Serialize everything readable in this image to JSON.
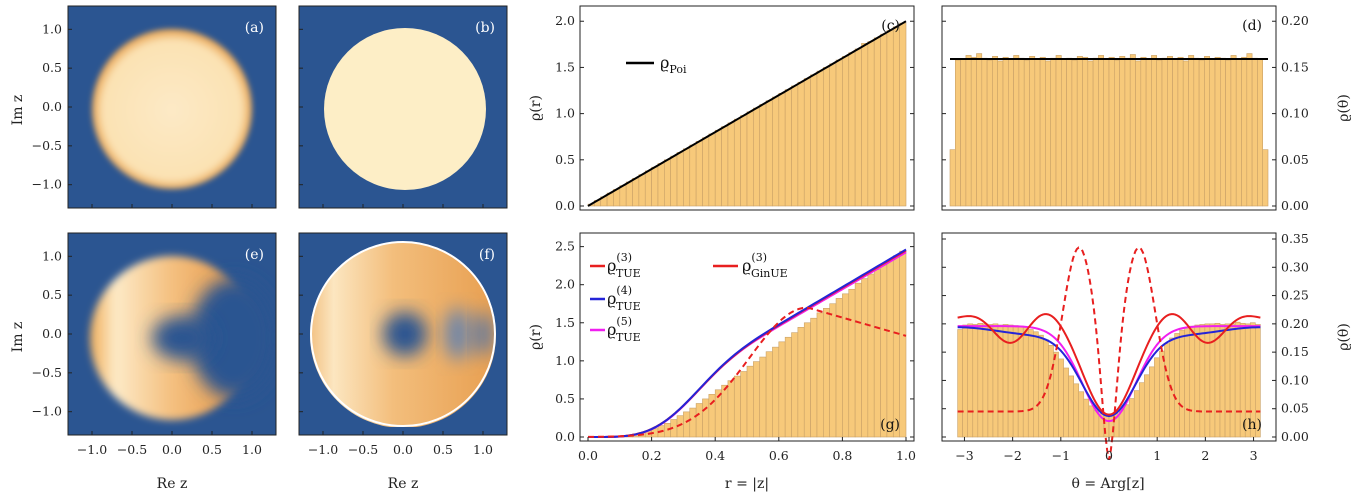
{
  "panel_labels": [
    "(a)",
    "(b)",
    "(c)",
    "(d)",
    "(e)",
    "(f)",
    "(g)",
    "(h)"
  ],
  "colors": {
    "navy": "#2b5591",
    "cream": "#fdeec6",
    "orange": "#e7a150",
    "bar_fill": "#f7c97a",
    "bar_edge": "#c9a167",
    "red": "#e81f1f",
    "blue": "#2424d8",
    "magenta": "#f01ff0",
    "black": "#000000"
  },
  "density_axes": {
    "ylabel": "Im z",
    "xlabel": "Re z",
    "xticks": [
      -1.0,
      -0.5,
      0.0,
      0.5,
      1.0
    ],
    "yticks": [
      1.0,
      0.5,
      0.0,
      -0.5,
      -1.0
    ],
    "range": [
      -1.3,
      1.3
    ]
  },
  "chart_data": [
    {
      "panel": "a",
      "type": "heatmap",
      "description_ref": "uniform disk, radius 1, blurred edge",
      "xlim": [
        -1.3,
        1.3
      ],
      "ylim": [
        -1.3,
        1.3
      ]
    },
    {
      "panel": "b",
      "type": "heatmap",
      "description_ref": "uniform disk, radius 1, sharp edge",
      "xlim": [
        -1.3,
        1.3
      ],
      "ylim": [
        -1.3,
        1.3
      ]
    },
    {
      "panel": "c",
      "type": "bar",
      "ylabel": "ϱ(r)",
      "xlim": [
        0,
        1
      ],
      "ylim": [
        0,
        2.1
      ],
      "yticks": [
        0.0,
        0.5,
        1.0,
        1.5,
        2.0
      ],
      "bins": 50,
      "values": [
        0.02,
        0.06,
        0.1,
        0.14,
        0.18,
        0.22,
        0.26,
        0.3,
        0.34,
        0.38,
        0.42,
        0.46,
        0.5,
        0.54,
        0.58,
        0.62,
        0.66,
        0.7,
        0.74,
        0.78,
        0.82,
        0.86,
        0.9,
        0.94,
        0.98,
        1.02,
        1.06,
        1.1,
        1.14,
        1.18,
        1.22,
        1.26,
        1.3,
        1.34,
        1.38,
        1.42,
        1.46,
        1.5,
        1.54,
        1.58,
        1.62,
        1.66,
        1.7,
        1.76,
        1.78,
        1.82,
        1.86,
        1.9,
        1.94,
        1.98
      ],
      "series": [
        {
          "name": "ϱ",
          "sub": "Poi",
          "formula": "2r",
          "color": "#000000"
        }
      ]
    },
    {
      "panel": "d",
      "type": "bar",
      "ylabel": "ϱ(θ)",
      "xlim": [
        -3.1416,
        3.1416
      ],
      "ylim": [
        0,
        0.21
      ],
      "yticks": [
        0.0,
        0.05,
        0.1,
        0.15,
        0.2
      ],
      "bins": 60,
      "values": [
        0.061,
        0.158,
        0.159,
        0.163,
        0.161,
        0.165,
        0.16,
        0.158,
        0.162,
        0.157,
        0.161,
        0.159,
        0.163,
        0.16,
        0.158,
        0.162,
        0.159,
        0.161,
        0.157,
        0.16,
        0.163,
        0.159,
        0.16,
        0.158,
        0.162,
        0.161,
        0.157,
        0.16,
        0.163,
        0.159,
        0.161,
        0.158,
        0.162,
        0.16,
        0.164,
        0.157,
        0.161,
        0.159,
        0.163,
        0.158,
        0.16,
        0.162,
        0.159,
        0.161,
        0.157,
        0.163,
        0.16,
        0.158,
        0.162,
        0.159,
        0.161,
        0.16,
        0.158,
        0.163,
        0.159,
        0.161,
        0.165,
        0.16,
        0.159,
        0.061
      ],
      "series": [
        {
          "formula": "1/(2π)",
          "color": "#000000"
        }
      ]
    },
    {
      "panel": "e",
      "type": "heatmap",
      "description_ref": "crescent disk with depleted region near +1",
      "xlim": [
        -1.3,
        1.3
      ],
      "ylim": [
        -1.3,
        1.3
      ]
    },
    {
      "panel": "f",
      "type": "heatmap",
      "description_ref": "sharp disk with depleted region near +1",
      "xlim": [
        -1.3,
        1.3
      ],
      "ylim": [
        -1.3,
        1.3
      ]
    },
    {
      "panel": "g",
      "type": "bar",
      "ylabel": "ϱ(r)",
      "xlabel": "r = |z|",
      "xlim": [
        0,
        1
      ],
      "ylim": [
        0,
        2.6
      ],
      "xticks": [
        0.0,
        0.2,
        0.4,
        0.6,
        0.8,
        1.0
      ],
      "yticks": [
        0.0,
        0.5,
        1.0,
        1.5,
        2.0,
        2.5
      ],
      "bins": 50,
      "values": [
        0.0,
        0.0,
        0.0,
        0.005,
        0.01,
        0.015,
        0.025,
        0.04,
        0.06,
        0.08,
        0.11,
        0.15,
        0.18,
        0.23,
        0.28,
        0.33,
        0.38,
        0.44,
        0.5,
        0.56,
        0.62,
        0.68,
        0.74,
        0.8,
        0.86,
        0.93,
        0.99,
        1.05,
        1.12,
        1.18,
        1.25,
        1.31,
        1.37,
        1.44,
        1.5,
        1.56,
        1.63,
        1.69,
        1.75,
        1.82,
        1.88,
        1.94,
        2.02,
        2.08,
        2.14,
        2.2,
        2.26,
        2.32,
        2.38,
        2.44
      ],
      "series": [
        {
          "name": "ϱ",
          "sub": "TUE",
          "sup": "(3)",
          "color": "#e81f1f",
          "style": "solid"
        },
        {
          "name": "ϱ",
          "sub": "TUE",
          "sup": "(4)",
          "color": "#2424d8",
          "style": "solid"
        },
        {
          "name": "ϱ",
          "sub": "TUE",
          "sup": "(5)",
          "color": "#f01ff0",
          "style": "solid"
        },
        {
          "name": "ϱ",
          "sub": "GinUE",
          "sup": "(3)",
          "color": "#e81f1f",
          "style": "dashed"
        }
      ]
    },
    {
      "panel": "h",
      "type": "bar",
      "ylabel": "ϱ(θ)",
      "xlabel": "θ = Arg[z]",
      "xlim": [
        -3.3,
        3.3
      ],
      "ylim": [
        0,
        0.35
      ],
      "xticks": [
        -3,
        -2,
        -1,
        0,
        1,
        2,
        3
      ],
      "yticks": [
        0.0,
        0.05,
        0.1,
        0.15,
        0.2,
        0.25,
        0.3,
        0.35
      ],
      "bins": 60,
      "values": [
        0.19,
        0.198,
        0.2,
        0.199,
        0.201,
        0.2,
        0.199,
        0.2,
        0.198,
        0.199,
        0.198,
        0.197,
        0.196,
        0.194,
        0.19,
        0.186,
        0.18,
        0.172,
        0.162,
        0.15,
        0.138,
        0.122,
        0.108,
        0.094,
        0.08,
        0.067,
        0.055,
        0.047,
        0.041,
        0.038,
        0.038,
        0.041,
        0.048,
        0.057,
        0.068,
        0.082,
        0.096,
        0.11,
        0.124,
        0.14,
        0.152,
        0.165,
        0.175,
        0.183,
        0.189,
        0.193,
        0.196,
        0.198,
        0.199,
        0.2,
        0.2,
        0.201,
        0.199,
        0.2,
        0.2,
        0.203,
        0.201,
        0.2,
        0.202,
        0.199
      ]
    }
  ]
}
